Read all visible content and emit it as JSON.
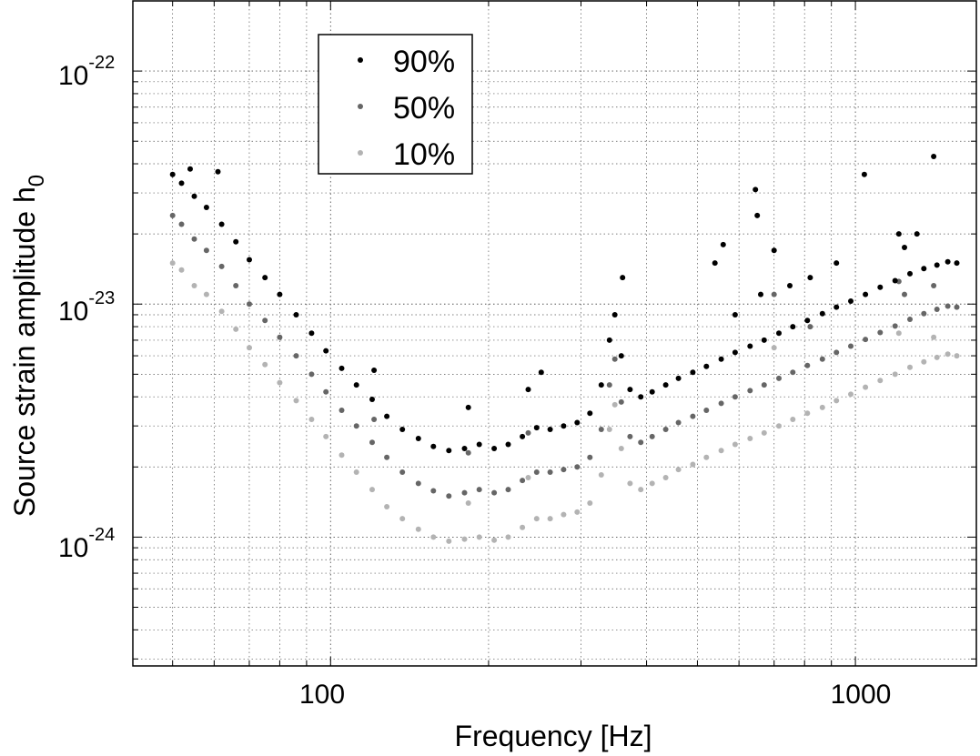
{
  "chart_data": {
    "type": "scatter",
    "xscale": "log",
    "yscale": "log",
    "xlim": [
      42,
      1700
    ],
    "ylim": [
      2.8e-25,
      2e-22
    ],
    "xlabel": "Frequency [Hz]",
    "ylabel_main": "Source strain amplitude",
    "ylabel_symbol": "h",
    "ylabel_subscript": "0",
    "x_ticks": [
      {
        "value": 100,
        "label": "100"
      },
      {
        "value": 1000,
        "label": "1000"
      }
    ],
    "y_ticks": [
      {
        "value": 1e-24,
        "base": "10",
        "exponent": "-24"
      },
      {
        "value": 1e-23,
        "base": "10",
        "exponent": "-23"
      },
      {
        "value": 1e-22,
        "base": "10",
        "exponent": "-22"
      }
    ],
    "grid": true,
    "legend_position": "top-left",
    "series": [
      {
        "name": "90%",
        "color": "#000000",
        "values": [
          [
            50,
            3.6e-23
          ],
          [
            52,
            3.3e-23
          ],
          [
            55,
            2.9e-23
          ],
          [
            58,
            2.6e-23
          ],
          [
            62,
            2.2e-23
          ],
          [
            66,
            1.85e-23
          ],
          [
            70,
            1.55e-23
          ],
          [
            75,
            1.3e-23
          ],
          [
            80,
            1.1e-23
          ],
          [
            86,
            9e-24
          ],
          [
            92,
            7.5e-24
          ],
          [
            98,
            6.3e-24
          ],
          [
            105,
            5.3e-24
          ],
          [
            112,
            4.5e-24
          ],
          [
            120,
            3.9e-24
          ],
          [
            128,
            3.3e-24
          ],
          [
            137,
            2.9e-24
          ],
          [
            147,
            2.65e-24
          ],
          [
            157,
            2.45e-24
          ],
          [
            168,
            2.35e-24
          ],
          [
            180,
            2.4e-24
          ],
          [
            192,
            2.5e-24
          ],
          [
            205,
            2.4e-24
          ],
          [
            218,
            2.5e-24
          ],
          [
            232,
            2.7e-24
          ],
          [
            247,
            2.95e-24
          ],
          [
            262,
            2.9e-24
          ],
          [
            278,
            3e-24
          ],
          [
            295,
            3.1e-24
          ],
          [
            312,
            3.4e-24
          ],
          [
            328,
            4.5e-24
          ],
          [
            340,
            7e-24
          ],
          [
            348,
            9e-24
          ],
          [
            358,
            6e-24
          ],
          [
            372,
            4.3e-24
          ],
          [
            390,
            4e-24
          ],
          [
            410,
            4.2e-24
          ],
          [
            435,
            4.5e-24
          ],
          [
            460,
            4.8e-24
          ],
          [
            490,
            5.1e-24
          ],
          [
            520,
            5.4e-24
          ],
          [
            555,
            5.8e-24
          ],
          [
            590,
            6.2e-24
          ],
          [
            630,
            6.6e-24
          ],
          [
            670,
            7e-24
          ],
          [
            715,
            7.5e-24
          ],
          [
            760,
            8e-24
          ],
          [
            810,
            8.5e-24
          ],
          [
            865,
            9.1e-24
          ],
          [
            920,
            9.7e-24
          ],
          [
            980,
            1.03e-23
          ],
          [
            1045,
            1.1e-23
          ],
          [
            1115,
            1.18e-23
          ],
          [
            1190,
            1.26e-23
          ],
          [
            1270,
            1.35e-23
          ],
          [
            1350,
            1.42e-23
          ],
          [
            1430,
            1.47e-23
          ],
          [
            1500,
            1.52e-23
          ],
          [
            1560,
            1.5e-23
          ],
          [
            54,
            3.8e-23
          ],
          [
            61,
            3.7e-23
          ],
          [
            121,
            5.2e-24
          ],
          [
            183,
            3.6e-24
          ],
          [
            238,
            4.3e-24
          ],
          [
            252,
            5.1e-24
          ],
          [
            360,
            1.3e-23
          ],
          [
            560,
            1.8e-23
          ],
          [
            645,
            3.1e-23
          ],
          [
            650,
            2.4e-23
          ],
          [
            700,
            1.7e-23
          ],
          [
            1040,
            3.6e-23
          ],
          [
            1410,
            4.3e-23
          ],
          [
            1210,
            2e-23
          ],
          [
            1310,
            2e-23
          ],
          [
            1240,
            1.75e-23
          ],
          [
            920,
            1.5e-23
          ],
          [
            820,
            1.3e-23
          ],
          [
            750,
            1.2e-23
          ],
          [
            660,
            1.1e-23
          ],
          [
            590,
            9e-24
          ],
          [
            540,
            1.5e-23
          ]
        ]
      },
      {
        "name": "50%",
        "color": "#666666",
        "values": [
          [
            50,
            2.4e-23
          ],
          [
            52,
            2.2e-23
          ],
          [
            55,
            1.9e-23
          ],
          [
            58,
            1.7e-23
          ],
          [
            62,
            1.45e-23
          ],
          [
            66,
            1.2e-23
          ],
          [
            70,
            1e-23
          ],
          [
            75,
            8.5e-24
          ],
          [
            80,
            7.2e-24
          ],
          [
            86,
            6e-24
          ],
          [
            92,
            5e-24
          ],
          [
            98,
            4.2e-24
          ],
          [
            105,
            3.5e-24
          ],
          [
            112,
            3e-24
          ],
          [
            120,
            2.55e-24
          ],
          [
            128,
            2.2e-24
          ],
          [
            137,
            1.9e-24
          ],
          [
            147,
            1.7e-24
          ],
          [
            157,
            1.58e-24
          ],
          [
            168,
            1.5e-24
          ],
          [
            180,
            1.55e-24
          ],
          [
            192,
            1.6e-24
          ],
          [
            205,
            1.55e-24
          ],
          [
            218,
            1.6e-24
          ],
          [
            232,
            1.75e-24
          ],
          [
            247,
            1.9e-24
          ],
          [
            262,
            1.9e-24
          ],
          [
            278,
            1.95e-24
          ],
          [
            295,
            2e-24
          ],
          [
            312,
            2.2e-24
          ],
          [
            328,
            2.9e-24
          ],
          [
            340,
            4.5e-24
          ],
          [
            348,
            5.8e-24
          ],
          [
            358,
            3.8e-24
          ],
          [
            372,
            2.7e-24
          ],
          [
            390,
            2.55e-24
          ],
          [
            410,
            2.7e-24
          ],
          [
            435,
            2.9e-24
          ],
          [
            460,
            3.1e-24
          ],
          [
            490,
            3.3e-24
          ],
          [
            520,
            3.5e-24
          ],
          [
            555,
            3.75e-24
          ],
          [
            590,
            4e-24
          ],
          [
            630,
            4.25e-24
          ],
          [
            670,
            4.5e-24
          ],
          [
            715,
            4.8e-24
          ],
          [
            760,
            5.1e-24
          ],
          [
            810,
            5.45e-24
          ],
          [
            865,
            5.8e-24
          ],
          [
            920,
            6.2e-24
          ],
          [
            980,
            6.6e-24
          ],
          [
            1045,
            7.05e-24
          ],
          [
            1115,
            7.55e-24
          ],
          [
            1190,
            8.05e-24
          ],
          [
            1270,
            8.6e-24
          ],
          [
            1350,
            9.1e-24
          ],
          [
            1430,
            9.5e-24
          ],
          [
            1500,
            9.8e-24
          ],
          [
            1560,
            9.7e-24
          ],
          [
            121,
            3.2e-24
          ],
          [
            183,
            2.3e-24
          ],
          [
            238,
            2.8e-24
          ],
          [
            700,
            1.1e-23
          ],
          [
            1210,
            1.25e-23
          ],
          [
            1410,
            1.2e-23
          ],
          [
            1240,
            1.1e-23
          ],
          [
            820,
            8e-24
          ]
        ]
      },
      {
        "name": "10%",
        "color": "#b3b3b3",
        "values": [
          [
            50,
            1.5e-23
          ],
          [
            52,
            1.4e-23
          ],
          [
            55,
            1.2e-23
          ],
          [
            58,
            1.1e-23
          ],
          [
            62,
            9.3e-24
          ],
          [
            66,
            7.8e-24
          ],
          [
            70,
            6.5e-24
          ],
          [
            75,
            5.5e-24
          ],
          [
            80,
            4.6e-24
          ],
          [
            86,
            3.85e-24
          ],
          [
            92,
            3.2e-24
          ],
          [
            98,
            2.7e-24
          ],
          [
            105,
            2.25e-24
          ],
          [
            112,
            1.9e-24
          ],
          [
            120,
            1.6e-24
          ],
          [
            128,
            1.35e-24
          ],
          [
            137,
            1.2e-24
          ],
          [
            147,
            1.08e-24
          ],
          [
            157,
            1e-24
          ],
          [
            168,
            9.6e-25
          ],
          [
            180,
            9.8e-25
          ],
          [
            192,
            1e-24
          ],
          [
            205,
            9.7e-25
          ],
          [
            218,
            1e-24
          ],
          [
            232,
            1.1e-24
          ],
          [
            247,
            1.2e-24
          ],
          [
            262,
            1.2e-24
          ],
          [
            278,
            1.25e-24
          ],
          [
            295,
            1.28e-24
          ],
          [
            312,
            1.4e-24
          ],
          [
            328,
            1.85e-24
          ],
          [
            340,
            2.9e-24
          ],
          [
            348,
            3.7e-24
          ],
          [
            358,
            2.4e-24
          ],
          [
            372,
            1.7e-24
          ],
          [
            390,
            1.6e-24
          ],
          [
            410,
            1.7e-24
          ],
          [
            435,
            1.8e-24
          ],
          [
            460,
            1.95e-24
          ],
          [
            490,
            2.05e-24
          ],
          [
            520,
            2.2e-24
          ],
          [
            555,
            2.35e-24
          ],
          [
            590,
            2.5e-24
          ],
          [
            630,
            2.65e-24
          ],
          [
            670,
            2.8e-24
          ],
          [
            715,
            3e-24
          ],
          [
            760,
            3.2e-24
          ],
          [
            810,
            3.4e-24
          ],
          [
            865,
            3.6e-24
          ],
          [
            920,
            3.85e-24
          ],
          [
            980,
            4.1e-24
          ],
          [
            1045,
            4.4e-24
          ],
          [
            1115,
            4.7e-24
          ],
          [
            1190,
            5e-24
          ],
          [
            1270,
            5.35e-24
          ],
          [
            1350,
            5.65e-24
          ],
          [
            1430,
            5.9e-24
          ],
          [
            1500,
            6.1e-24
          ],
          [
            1560,
            6e-24
          ],
          [
            183,
            1.4e-24
          ],
          [
            238,
            1.8e-24
          ],
          [
            700,
            6.5e-24
          ],
          [
            1210,
            7.5e-24
          ],
          [
            1410,
            7.2e-24
          ]
        ]
      }
    ]
  }
}
